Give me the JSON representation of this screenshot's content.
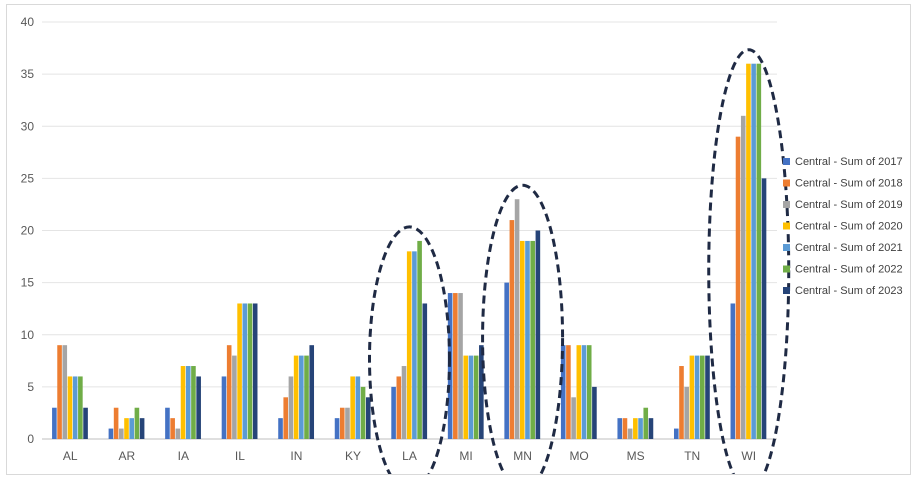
{
  "chart_data": {
    "type": "bar",
    "categories": [
      "AL",
      "AR",
      "IA",
      "IL",
      "IN",
      "KY",
      "LA",
      "MI",
      "MN",
      "MO",
      "MS",
      "TN",
      "WI"
    ],
    "ylim": [
      0,
      40
    ],
    "yticks": [
      0,
      5,
      10,
      15,
      20,
      25,
      30,
      35,
      40
    ],
    "grid": true,
    "legend_position": "right",
    "highlighted_categories": [
      "LA",
      "MN",
      "WI"
    ],
    "series": [
      {
        "name": "Central - Sum of 2017",
        "color": "#4472C4",
        "values": [
          3,
          1,
          3,
          6,
          2,
          2,
          5,
          14,
          15,
          9,
          2,
          1,
          13
        ]
      },
      {
        "name": "Central - Sum of 2018",
        "color": "#ED7D31",
        "values": [
          9,
          3,
          2,
          9,
          4,
          3,
          6,
          14,
          21,
          9,
          2,
          7,
          29
        ]
      },
      {
        "name": "Central - Sum of 2019",
        "color": "#A5A5A5",
        "values": [
          9,
          1,
          1,
          8,
          6,
          3,
          7,
          14,
          23,
          4,
          1,
          5,
          31
        ]
      },
      {
        "name": "Central - Sum of 2020",
        "color": "#FFC000",
        "values": [
          6,
          2,
          7,
          13,
          8,
          6,
          18,
          8,
          19,
          9,
          2,
          8,
          36
        ]
      },
      {
        "name": "Central - Sum of 2021",
        "color": "#5B9BD5",
        "values": [
          6,
          2,
          7,
          13,
          8,
          6,
          18,
          8,
          19,
          9,
          2,
          8,
          36
        ]
      },
      {
        "name": "Central - Sum of 2022",
        "color": "#70AD47",
        "values": [
          6,
          3,
          7,
          13,
          8,
          5,
          19,
          8,
          19,
          9,
          3,
          8,
          36
        ]
      },
      {
        "name": "Central - Sum of 2023",
        "color": "#264478",
        "values": [
          3,
          2,
          6,
          13,
          9,
          4,
          13,
          9,
          20,
          5,
          2,
          8,
          25
        ]
      }
    ]
  }
}
